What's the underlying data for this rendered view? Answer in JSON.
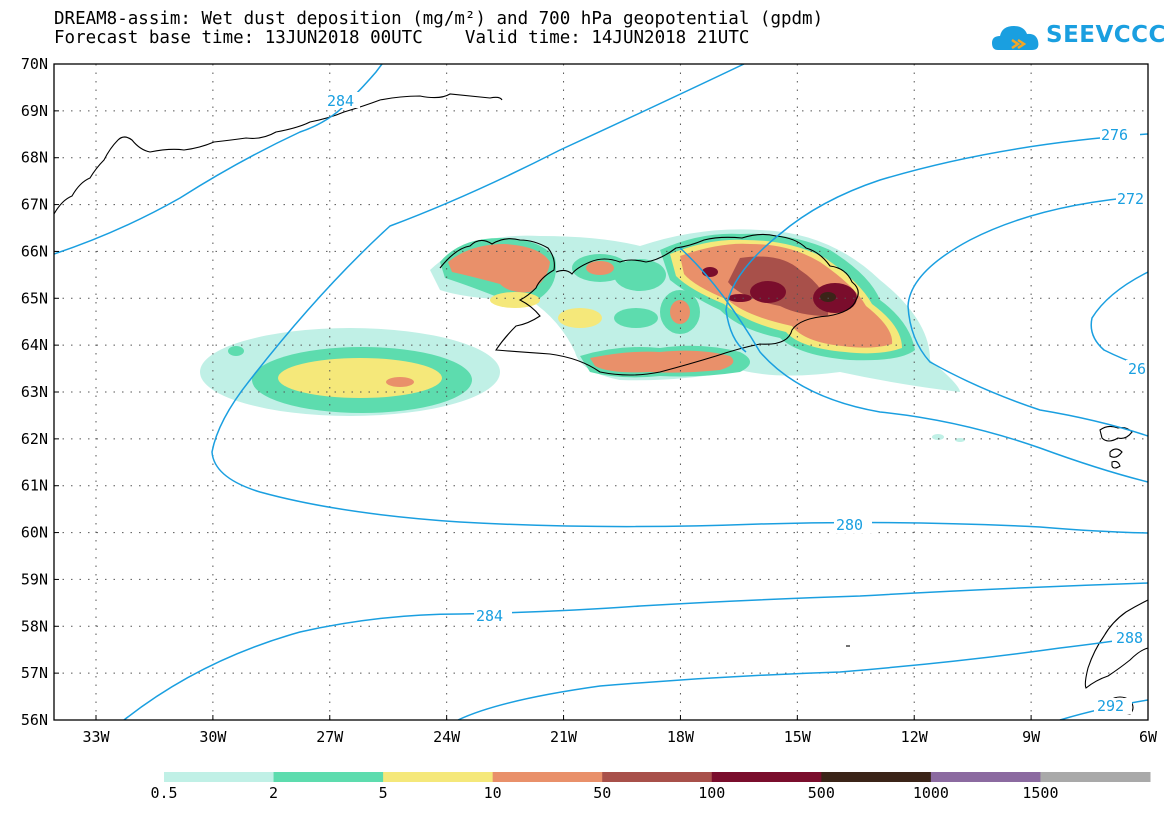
{
  "title_line1": "DREAM8-assim: Wet dust deposition (mg/m²) and 700 hPa geopotential (gpdm)",
  "title_line2_left": "Forecast base time: 13JUN2018 00UTC",
  "title_line2_right": "Valid time: 14JUN2018 21UTC",
  "logo_text": "SEEVCCC",
  "logo_icon": "cloud-icon",
  "lat_labels": [
    "70N",
    "69N",
    "68N",
    "67N",
    "66N",
    "65N",
    "64N",
    "63N",
    "62N",
    "61N",
    "60N",
    "59N",
    "58N",
    "57N",
    "56N"
  ],
  "lon_labels": [
    "33W",
    "30W",
    "27W",
    "24W",
    "21W",
    "18W",
    "15W",
    "12W",
    "9W",
    "6W"
  ],
  "contour_labels": [
    "284",
    "276",
    "272",
    "26",
    "280",
    "284",
    "288",
    "292"
  ],
  "colorbar": {
    "labels": [
      "0.5",
      "2",
      "5",
      "10",
      "50",
      "100",
      "500",
      "1000",
      "1500"
    ],
    "colors": [
      "#c0f0e6",
      "#5ddcae",
      "#f5e87a",
      "#e9906a",
      "#a8504a",
      "#7a0d2c",
      "#3b2418",
      "#8b6aa0",
      "#a9a9a9"
    ]
  },
  "colors": {
    "contour": "#1a9fe0",
    "coast": "#000000",
    "grid": "#555555"
  }
}
